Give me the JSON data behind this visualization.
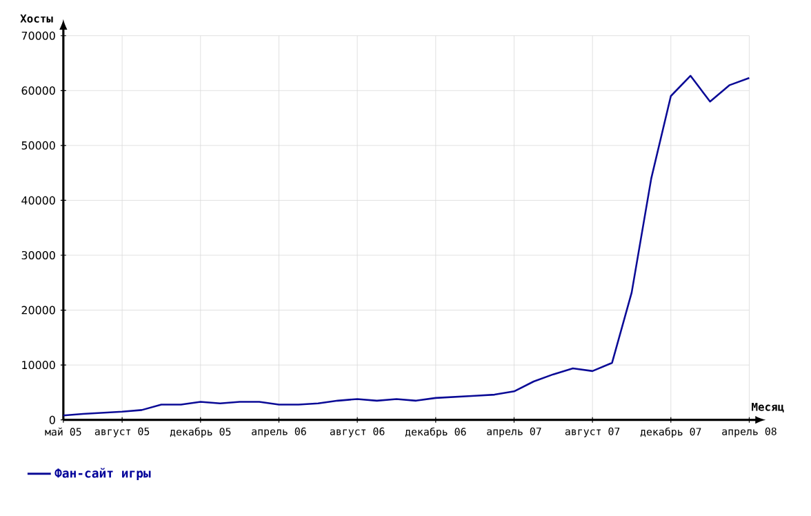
{
  "chart_data": {
    "type": "line",
    "ylabel": "Хосты",
    "xlabel": "Месяц",
    "x": [
      "2005-05",
      "2005-06",
      "2005-07",
      "2005-08",
      "2005-09",
      "2005-10",
      "2005-11",
      "2005-12",
      "2006-01",
      "2006-02",
      "2006-03",
      "2006-04",
      "2006-05",
      "2006-06",
      "2006-07",
      "2006-08",
      "2006-09",
      "2006-10",
      "2006-11",
      "2006-12",
      "2007-01",
      "2007-02",
      "2007-03",
      "2007-04",
      "2007-05",
      "2007-06",
      "2007-07",
      "2007-08",
      "2007-09",
      "2007-10",
      "2007-11",
      "2007-12",
      "2008-01",
      "2008-02",
      "2008-03",
      "2008-04"
    ],
    "series": [
      {
        "name": "Фан-сайт игры",
        "color": "#0a0a96",
        "values": [
          800,
          1100,
          1300,
          1500,
          1800,
          2800,
          2800,
          3300,
          3000,
          3300,
          3300,
          2800,
          2800,
          3000,
          3500,
          3800,
          3500,
          3800,
          3500,
          4000,
          4200,
          4400,
          4600,
          5200,
          7000,
          8300,
          9400,
          8900,
          10400,
          23200,
          44000,
          59000,
          62700,
          58000,
          61000,
          62300
        ]
      }
    ],
    "xlim": [
      "2005-05",
      "2008-04"
    ],
    "xticks": [
      {
        "value": "2005-05",
        "label": "май 05"
      },
      {
        "value": "2005-08",
        "label": "август 05"
      },
      {
        "value": "2005-12",
        "label": "декабрь 05"
      },
      {
        "value": "2006-04",
        "label": "апрель 06"
      },
      {
        "value": "2006-08",
        "label": "август 06"
      },
      {
        "value": "2006-12",
        "label": "декабрь 06"
      },
      {
        "value": "2007-04",
        "label": "апрель 07"
      },
      {
        "value": "2007-08",
        "label": "август 07"
      },
      {
        "value": "2007-12",
        "label": "декабрь 07"
      },
      {
        "value": "2008-04",
        "label": "апрель 08"
      }
    ],
    "ylim": [
      0,
      70000
    ],
    "yticks": [
      0,
      10000,
      20000,
      30000,
      40000,
      50000,
      60000,
      70000
    ],
    "grid": true,
    "legend": "bottom left",
    "marker": "none",
    "line_style": "solid"
  }
}
